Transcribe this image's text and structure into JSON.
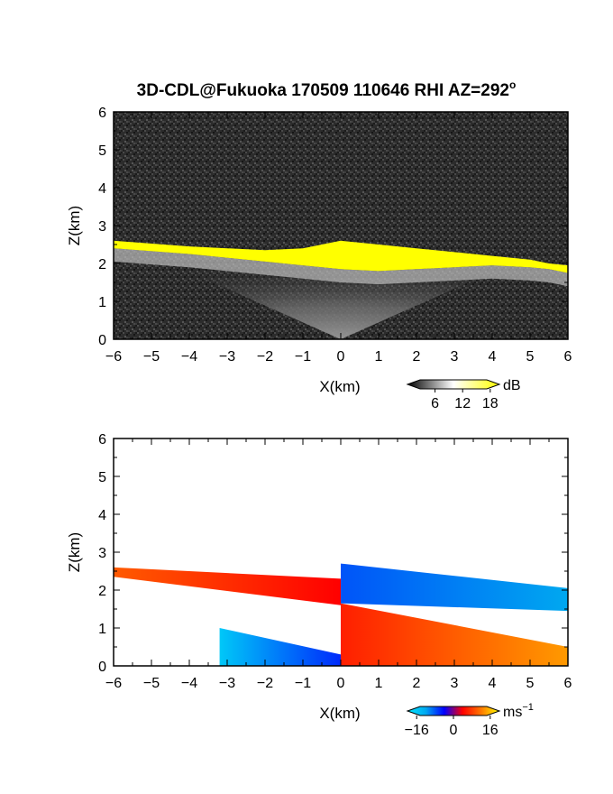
{
  "chart_data": [
    {
      "type": "heatmap",
      "title": "3D-CDL@Fukuoka 170509 110646 RHI AZ=292",
      "title_superscript": "o",
      "xlabel": "X(km)",
      "ylabel": "Z(km)",
      "xlim": [
        -6,
        6
      ],
      "ylim": [
        0,
        6
      ],
      "xticks": [
        "-6",
        "-5",
        "-4",
        "-3",
        "-2",
        "-1",
        "0",
        "1",
        "2",
        "3",
        "4",
        "5",
        "6"
      ],
      "yticks": [
        "0",
        "1",
        "2",
        "3",
        "4",
        "5",
        "6"
      ],
      "colorbar": {
        "label": "dB",
        "ticks": [
          "6",
          "12",
          "18"
        ],
        "range": [
          0,
          20
        ],
        "colors": [
          "#000000",
          "#ffffff",
          "#ffff00"
        ]
      },
      "features": {
        "cloud_base_layer": {
          "x": [
            -6,
            -4,
            -2,
            -1,
            0,
            1,
            2,
            3,
            4,
            5,
            5.5,
            6
          ],
          "z_top": [
            2.6,
            2.45,
            2.35,
            2.4,
            2.6,
            2.5,
            2.4,
            2.3,
            2.2,
            2.1,
            2.0,
            1.95
          ],
          "z_bottom": [
            2.4,
            2.25,
            2.05,
            1.95,
            1.85,
            1.8,
            1.85,
            1.9,
            1.95,
            1.9,
            1.85,
            1.75
          ],
          "level_db": 18
        },
        "scatter_cone": {
          "apex_x": 0,
          "apex_z": 0,
          "max_height": 2.0,
          "level_db": 10
        },
        "background_level_db": 2
      }
    },
    {
      "type": "heatmap",
      "title": "",
      "xlabel": "X(km)",
      "ylabel": "Z(km)",
      "xlim": [
        -6,
        6
      ],
      "ylim": [
        0,
        6
      ],
      "xticks": [
        "-6",
        "-5",
        "-4",
        "-3",
        "-2",
        "-1",
        "0",
        "1",
        "2",
        "3",
        "4",
        "5",
        "6"
      ],
      "yticks": [
        "0",
        "1",
        "2",
        "3",
        "4",
        "5",
        "6"
      ],
      "colorbar": {
        "label": "ms",
        "label_superscript": "−1",
        "ticks": [
          "−16",
          "0",
          "16"
        ],
        "range": [
          -20,
          20
        ],
        "colors": [
          "#00e8ff",
          "#00a8f0",
          "#0000ff",
          "#ff0000",
          "#ff7800",
          "#ffff00"
        ]
      },
      "regions": [
        {
          "x": [
            -6,
            0
          ],
          "z_top": [
            2.6,
            2.3
          ],
          "z_bottom": [
            2.35,
            1.6
          ],
          "velocity_ms": [
            10,
            4
          ]
        },
        {
          "x": [
            0,
            6
          ],
          "z_top": [
            2.7,
            2.05
          ],
          "z_bottom": [
            1.65,
            1.45
          ],
          "velocity_ms": [
            -8,
            -12
          ]
        },
        {
          "x": [
            -3.2,
            0
          ],
          "z_top": [
            1.0,
            0.3
          ],
          "z_bottom": [
            0.0,
            0.0
          ],
          "velocity_ms": [
            -16,
            -6
          ]
        },
        {
          "x": [
            0,
            6
          ],
          "z_top": [
            1.65,
            0.5
          ],
          "z_bottom": [
            0.0,
            0.0
          ],
          "velocity_ms": [
            6,
            14
          ]
        }
      ]
    }
  ]
}
